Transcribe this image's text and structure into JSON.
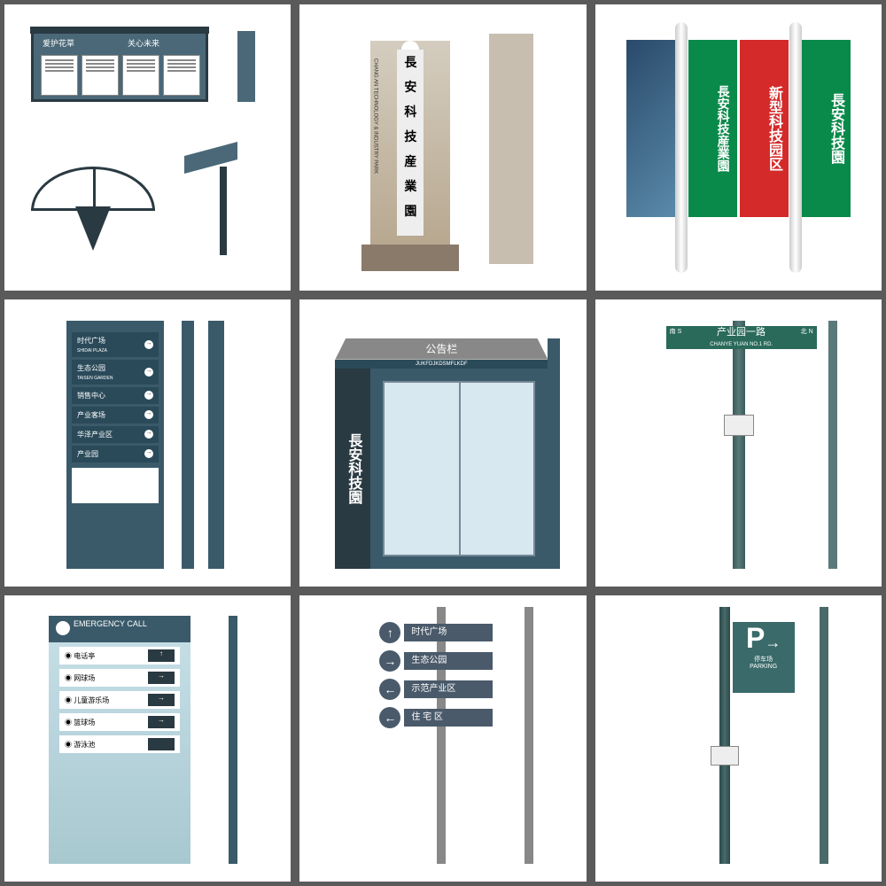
{
  "grid": {
    "cols": 3,
    "rows": 3,
    "gap": 10,
    "bg": "#5a5a5a",
    "cell_bg": "#ffffff"
  },
  "colors": {
    "teal": "#3a5a6a",
    "dark": "#2a3a42",
    "green": "#0a8a4a",
    "red": "#d42a2a",
    "street": "#2a6a5a"
  },
  "c1": {
    "tab1": "爱护花草",
    "tab2": "关心未来"
  },
  "c2": {
    "name": "長安科技産業園",
    "side": "CHANG AN TECHNOLOGY & INDUSTRY PARK"
  },
  "c3": {
    "b2": "長安科技産業園",
    "b3": "新型科技园区",
    "b4": "長安科技園"
  },
  "c4": {
    "items": [
      {
        "t": "时代广场",
        "s": "SHIDAI PLAZA"
      },
      {
        "t": "生态公园",
        "s": "TAISEN GARDEN"
      },
      {
        "t": "销售中心",
        "s": ""
      },
      {
        "t": "产业客场",
        "s": ""
      },
      {
        "t": "华泽产业区",
        "s": ""
      },
      {
        "t": "产业园",
        "s": ""
      }
    ]
  },
  "c5": {
    "title": "公告栏",
    "sub": "JUKFDJKDSMFLKDF",
    "name": "長安科技園"
  },
  "c6": {
    "cn": "产业园一路",
    "en": "CHANYE YUAN NO.1 RD.",
    "l": "南 S",
    "r": "北 N"
  },
  "c7": {
    "title": "EMERGENCY CALL",
    "items": [
      {
        "t": "电话亭",
        "a": "↑"
      },
      {
        "t": "网球场",
        "a": "→"
      },
      {
        "t": "儿童游乐场",
        "a": "→"
      },
      {
        "t": "篮球场",
        "a": "→"
      },
      {
        "t": "游泳池",
        "a": ""
      }
    ]
  },
  "c8": {
    "items": [
      {
        "a": "↑",
        "t": "时代广场"
      },
      {
        "a": "→",
        "t": "生态公园"
      },
      {
        "a": "←",
        "t": "示范产业区"
      },
      {
        "a": "←",
        "t": "住 宅 区"
      }
    ]
  },
  "c9": {
    "p": "P",
    "arrow": "→",
    "label": "停车场",
    "en": "PARKING"
  }
}
